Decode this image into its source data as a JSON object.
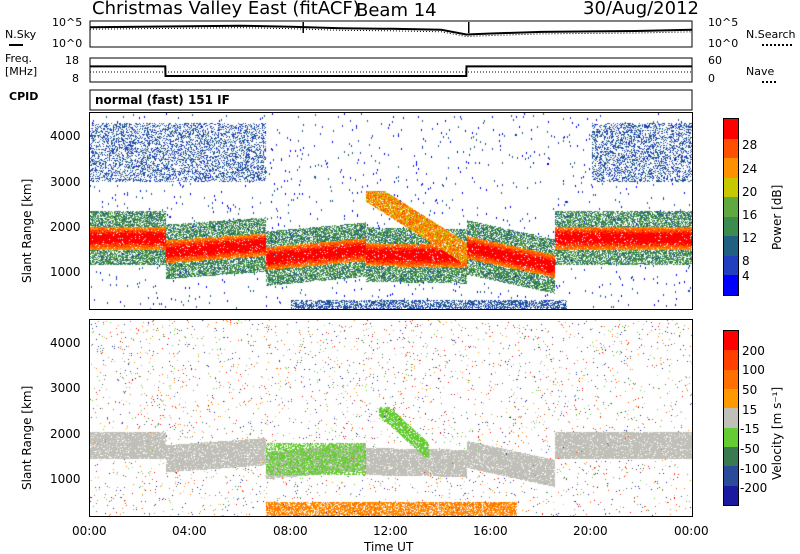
{
  "header": {
    "station": "Christmas Valley East (fitACF)",
    "beam": "Beam 14",
    "date": "30/Aug/2012"
  },
  "summary_panels": {
    "nsky_label": "N.Sky",
    "nsearch_label": "N.Search",
    "noise_ticks": [
      "10^5",
      "10^0"
    ],
    "freq_label_1": "Freq.",
    "freq_label_2": "[MHz]",
    "freq_ticks": [
      "18",
      "8"
    ],
    "nave_label": "Nave",
    "nave_ticks": [
      "60",
      "0"
    ],
    "cpid_label": "CPID",
    "cpid_value": "normal (fast) 151 IF"
  },
  "power_panel": {
    "ylabel": "Slant Range [km]",
    "yticks": [
      "4000",
      "3000",
      "2000",
      "1000"
    ],
    "colorbar_label": "Power [dB]",
    "colorbar_ticks": [
      "28",
      "24",
      "20",
      "16",
      "12",
      "8",
      "4"
    ],
    "colorbar_colors": [
      "#0000ff",
      "#2040c0",
      "#206080",
      "#3c8c50",
      "#60a840",
      "#c8c800",
      "#ff9000",
      "#ff5000",
      "#ff0000"
    ]
  },
  "velocity_panel": {
    "ylabel": "Slant Range [km]",
    "yticks": [
      "4000",
      "3000",
      "2000",
      "1000"
    ],
    "colorbar_label": "Velocity [m s⁻¹]",
    "colorbar_ticks": [
      "200",
      "100",
      "50",
      "15",
      "-15",
      "-50",
      "-100",
      "-200"
    ],
    "colorbar_colors": [
      "#1a1aa0",
      "#2a4a9a",
      "#3a7a50",
      "#66cc33",
      "#c0c0b8",
      "#ff9900",
      "#ff7000",
      "#ff4000",
      "#ff0000"
    ]
  },
  "xaxis": {
    "label": "Time UT",
    "ticks": [
      "00:00",
      "04:00",
      "08:00",
      "12:00",
      "16:00",
      "20:00",
      "00:00"
    ]
  },
  "chart_data": [
    {
      "type": "line",
      "name": "noise",
      "x_hours": [
        0,
        2,
        4,
        6,
        8,
        10,
        12,
        14,
        15,
        16,
        18,
        20,
        22,
        24
      ],
      "series": [
        {
          "name": "N.Sky",
          "values_log10": [
            3.8,
            3.9,
            4.0,
            4.1,
            3.9,
            3.6,
            3.5,
            3.3,
            2.4,
            2.6,
            2.9,
            3.0,
            3.1,
            3.3
          ]
        }
      ],
      "ylim_log10": [
        0,
        5
      ]
    },
    {
      "type": "line",
      "name": "frequency",
      "x_hours": [
        0,
        3.0,
        3.01,
        15.0,
        15.01,
        24
      ],
      "series": [
        {
          "name": "Freq.",
          "values": [
            14.5,
            14.5,
            10.5,
            10.5,
            14.5,
            14.5
          ]
        }
      ],
      "ylim": [
        8,
        18
      ]
    },
    {
      "type": "heatmap",
      "name": "power",
      "x_range_hours": [
        0,
        24
      ],
      "ylim_km": [
        180,
        4500
      ],
      "band_rows": [
        {
          "t": [
            0,
            3
          ],
          "r_center": 1750,
          "value": 24
        },
        {
          "t": [
            3,
            7
          ],
          "r_center": 1500,
          "value": 26
        },
        {
          "t": [
            7,
            11
          ],
          "r_center": 1350,
          "value": 22
        },
        {
          "t": [
            11,
            15
          ],
          "r_center": 1400,
          "value": 26
        },
        {
          "t": [
            15,
            18.5
          ],
          "r_center": 1700,
          "value": 22
        },
        {
          "t": [
            18.5,
            24
          ],
          "r_center": 1750,
          "value": 26
        }
      ],
      "colorbar_range_db": [
        0,
        30
      ]
    },
    {
      "type": "heatmap",
      "name": "velocity",
      "x_range_hours": [
        0,
        24
      ],
      "ylim_km": [
        180,
        4500
      ],
      "colorbar_range": [
        -200,
        200
      ]
    }
  ]
}
